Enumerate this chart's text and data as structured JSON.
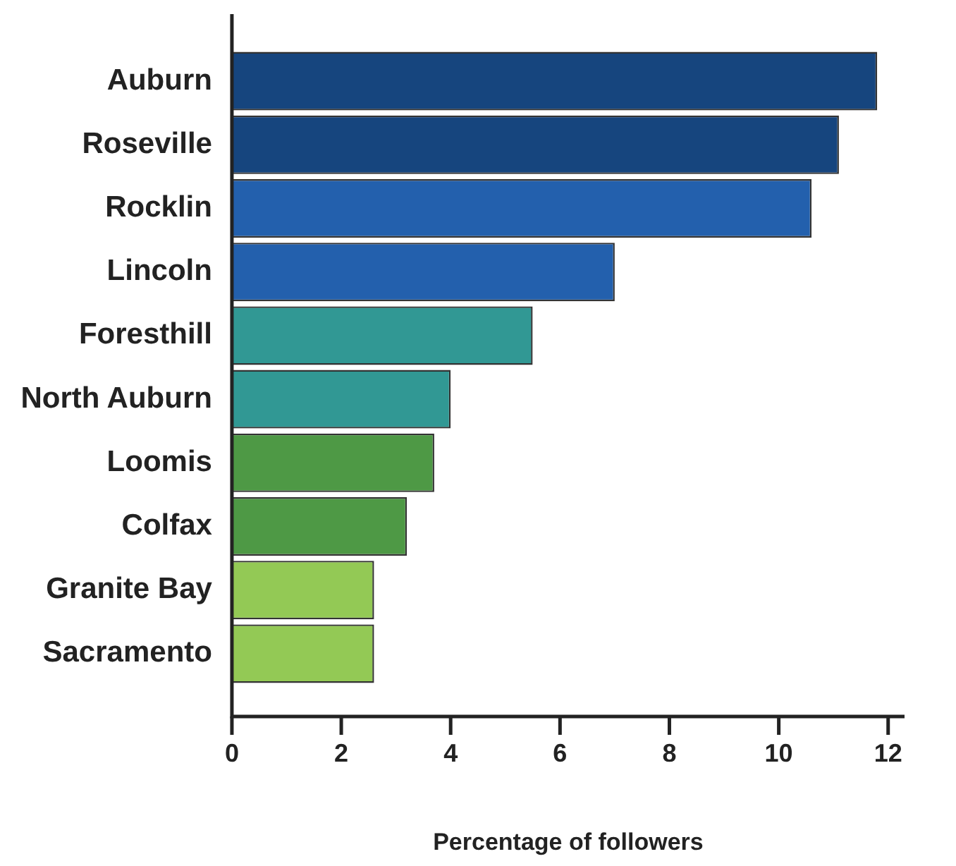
{
  "chart_data": {
    "type": "bar",
    "orientation": "horizontal",
    "xlabel": "Percentage of followers",
    "categories": [
      "Auburn",
      "Roseville",
      "Rocklin",
      "Lincoln",
      "Foresthill",
      "North Auburn",
      "Loomis",
      "Colfax",
      "Granite Bay",
      "Sacramento"
    ],
    "values": [
      11.8,
      11.1,
      10.6,
      7.0,
      5.5,
      4.0,
      3.7,
      3.2,
      2.6,
      2.6
    ],
    "colors": [
      "#16457e",
      "#16457e",
      "#2360ad",
      "#2360ad",
      "#319894",
      "#319894",
      "#4e9945",
      "#4e9945",
      "#93c955",
      "#93c955"
    ],
    "xlim": [
      0,
      12.3
    ],
    "xticks": [
      0,
      2,
      4,
      6,
      8,
      10,
      12
    ],
    "grid": false,
    "legend": false
  }
}
